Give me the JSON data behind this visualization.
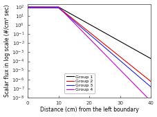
{
  "title": "",
  "xlabel": "Distance (cm) from the left boundary",
  "ylabel": "Scalar flux in log scale (#/cm² sec)",
  "xlim": [
    0,
    40
  ],
  "ylim_log": [
    1e-08,
    200
  ],
  "legend_labels": [
    "Group 1",
    "Group 2",
    "Group 3",
    "Group 4"
  ],
  "colors": [
    "#000000",
    "#dd0000",
    "#2222cc",
    "#cc00cc"
  ],
  "background_color": "#ffffff",
  "figsize": [
    2.28,
    1.69
  ],
  "dpi": 100,
  "tick_fontsize": 5,
  "label_fontsize": 5.5,
  "legend_fontsize": 4.5,
  "groups": [
    {
      "x_flat_end": 10.0,
      "y_flat": 100.0,
      "y_end": 0.0002,
      "curve": 0.5
    },
    {
      "x_flat_end": 10.0,
      "y_flat": 90.0,
      "y_end": 6e-07,
      "curve": 0.7
    },
    {
      "x_flat_end": 10.0,
      "y_flat": 80.0,
      "y_end": 1.5e-07,
      "curve": 0.7
    },
    {
      "x_flat_end": 10.0,
      "y_flat": 100.0,
      "y_end": 4e-09,
      "curve": 1.5
    }
  ]
}
